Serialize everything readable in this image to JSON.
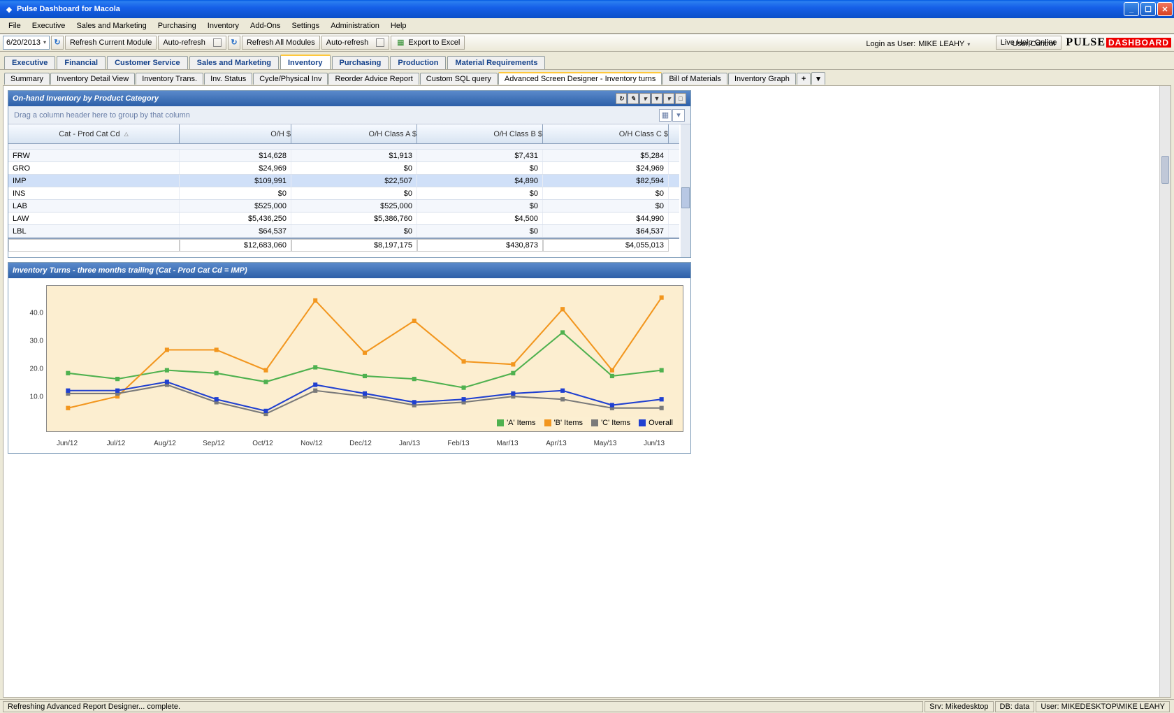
{
  "title": "Pulse Dashboard for Macola",
  "menu": [
    "File",
    "Executive",
    "Sales and Marketing",
    "Purchasing",
    "Inventory",
    "Add-Ons",
    "Settings",
    "Administration",
    "Help"
  ],
  "toolbar": {
    "date": "6/20/2013",
    "refreshCurrent": "Refresh Current Module",
    "autoRefresh": "Auto-refresh",
    "refreshAll": "Refresh All Modules",
    "export": "Export to Excel",
    "liveHelp": "Live Help Online",
    "loginAs": "Login as User:",
    "user": "MIKE LEAHY",
    "userControl": "User Control"
  },
  "brand": {
    "p1": "PULSE",
    "p2": "DASHBOARD"
  },
  "mainTabs": [
    "Executive",
    "Financial",
    "Customer Service",
    "Sales and Marketing",
    "Inventory",
    "Purchasing",
    "Production",
    "Material Requirements"
  ],
  "mainActive": 4,
  "subTabs": [
    "Summary",
    "Inventory Detail View",
    "Inventory Trans.",
    "Inv. Status",
    "Cycle/Physical Inv",
    "Reorder Advice Report",
    "Custom SQL query",
    "Advanced Screen Designer - Inventory turns",
    "Bill of Materials",
    "Inventory Graph"
  ],
  "subActive": 7,
  "panel1": {
    "title": "On-hand Inventory by Product Category",
    "groupHint": "Drag a column header here to group by that column",
    "columns": [
      "Cat - Prod Cat Cd",
      "O/H $",
      "O/H Class A $",
      "O/H Class B $",
      "O/H Class C $"
    ],
    "rows": [
      [
        "FRW",
        "$14,628",
        "$1,913",
        "$7,431",
        "$5,284"
      ],
      [
        "GRO",
        "$24,969",
        "$0",
        "$0",
        "$24,969"
      ],
      [
        "IMP",
        "$109,991",
        "$22,507",
        "$4,890",
        "$82,594"
      ],
      [
        "INS",
        "$0",
        "$0",
        "$0",
        "$0"
      ],
      [
        "LAB",
        "$525,000",
        "$525,000",
        "$0",
        "$0"
      ],
      [
        "LAW",
        "$5,436,250",
        "$5,386,760",
        "$4,500",
        "$44,990"
      ],
      [
        "LBL",
        "$64,537",
        "$0",
        "$0",
        "$64,537"
      ]
    ],
    "highlightRow": 2,
    "totals": [
      "",
      "$12,683,060",
      "$8,197,175",
      "$430,873",
      "$4,055,013"
    ]
  },
  "panel2": {
    "title": "Inventory Turns - three months trailing (Cat - Prod Cat Cd = IMP)",
    "xLabels": [
      "Jun/12",
      "Jul/12",
      "Aug/12",
      "Sep/12",
      "Oct/12",
      "Nov/12",
      "Dec/12",
      "Jan/13",
      "Feb/13",
      "Mar/13",
      "Apr/13",
      "May/13",
      "Jun/13"
    ],
    "yTicks": [
      10.0,
      20.0,
      30.0,
      40.0
    ],
    "yMin": 0,
    "yMax": 50,
    "series": [
      {
        "name": "'A' Items",
        "color": "#4fb14f",
        "marker": "square",
        "data": [
          20,
          18,
          21,
          20,
          17,
          22,
          19,
          18,
          15,
          20,
          34,
          19,
          21
        ]
      },
      {
        "name": "'B' Items",
        "color": "#f2961e",
        "marker": "square",
        "data": [
          8,
          12,
          28,
          28,
          21,
          45,
          27,
          38,
          24,
          23,
          42,
          21,
          46
        ]
      },
      {
        "name": "'C' Items",
        "color": "#7a7a7a",
        "marker": "square",
        "data": [
          13,
          13,
          16,
          10,
          6,
          14,
          12,
          9,
          10,
          12,
          11,
          8,
          8
        ]
      },
      {
        "name": "Overall",
        "color": "#2040d0",
        "marker": "square",
        "data": [
          14,
          14,
          17,
          11,
          7,
          16,
          13,
          10,
          11,
          13,
          14,
          9,
          11
        ]
      }
    ],
    "legendLabels": [
      "'A' Items",
      "'B' Items",
      "'C' Items",
      "Overall"
    ],
    "bg": "#fceed0"
  },
  "status": {
    "msg": "Refreshing Advanced Report Designer... complete.",
    "srv": "Srv: Mikedesktop",
    "db": "DB: data",
    "user": "User: MIKEDESKTOP\\MIKE LEAHY"
  }
}
